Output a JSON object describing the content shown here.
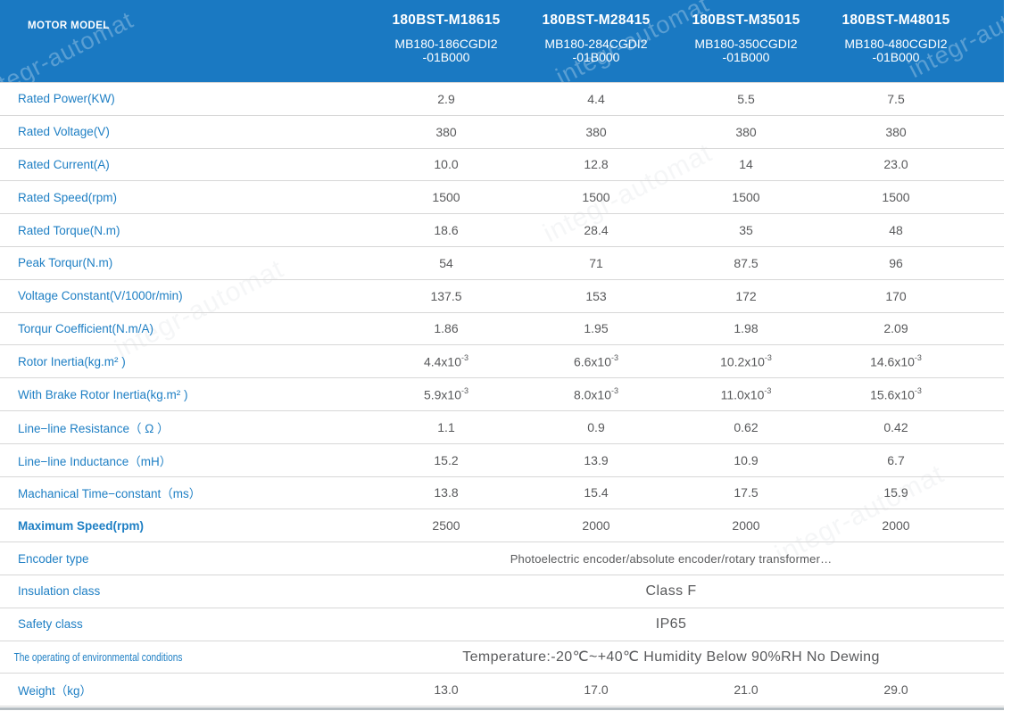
{
  "header": {
    "row_label": "MOTOR MODEL",
    "models": [
      {
        "name": "180BST-M18615",
        "code_line1": "MB180-186CGDI2",
        "code_line2": "-01B000"
      },
      {
        "name": "180BST-M28415",
        "code_line1": "MB180-284CGDI2",
        "code_line2": "-01B000"
      },
      {
        "name": "180BST-M35015",
        "code_line1": "MB180-350CGDI2",
        "code_line2": "-01B000"
      },
      {
        "name": "180BST-M48015",
        "code_line1": "MB180-480CGDI2",
        "code_line2": "-01B000"
      }
    ]
  },
  "watermark": {
    "text": "integr-automat"
  },
  "colors": {
    "header_bg": "#1a79c2",
    "label_text": "#1e7fc4",
    "value_text": "#58595b",
    "divider": "#d7d7d7",
    "bottom_bar": "#b5bdc2"
  },
  "table": {
    "rows": [
      {
        "label": "Rated Power(KW)",
        "values": [
          "2.9",
          "4.4",
          "5.5",
          "7.5"
        ]
      },
      {
        "label": "Rated Voltage(V)",
        "values": [
          "380",
          "380",
          "380",
          "380"
        ]
      },
      {
        "label": "Rated Current(A)",
        "values": [
          "10.0",
          "12.8",
          "14",
          "23.0"
        ]
      },
      {
        "label": "Rated Speed(rpm)",
        "values": [
          "1500",
          "1500",
          "1500",
          "1500"
        ]
      },
      {
        "label": "Rated Torque(N.m)",
        "values": [
          "18.6",
          "28.4",
          "35",
          "48"
        ]
      },
      {
        "label": "Peak Torqur(N.m)",
        "values": [
          "54",
          "71",
          "87.5",
          "96"
        ]
      },
      {
        "label": "Voltage Constant(V/1000r/min)",
        "values": [
          "137.5",
          "153",
          "172",
          "170"
        ]
      },
      {
        "label": "Torqur Coefficient(N.m/A)",
        "values": [
          "1.86",
          "1.95",
          "1.98",
          "2.09"
        ]
      },
      {
        "label": "Rotor Inertia(kg.m² )",
        "values": [
          "4.4x10^-3",
          "6.6x10^-3",
          "10.2x10^-3",
          "14.6x10^-3"
        ]
      },
      {
        "label": "With Brake Rotor Inertia(kg.m² )",
        "values": [
          "5.9x10^-3",
          "8.0x10^-3",
          "11.0x10^-3",
          "15.6x10^-3"
        ]
      },
      {
        "label": "Line−line Resistance（ Ω ）",
        "values": [
          "1.1",
          "0.9",
          "0.62",
          "0.42"
        ]
      },
      {
        "label": "Line−line Inductance（mH）",
        "values": [
          "15.2",
          "13.9",
          "10.9",
          "6.7"
        ]
      },
      {
        "label": "Machanical Time−constant（ms）",
        "values": [
          "13.8",
          "15.4",
          "17.5",
          "15.9"
        ]
      },
      {
        "label": "Maximum Speed(rpm)",
        "bold": true,
        "values": [
          "2500",
          "2000",
          "2000",
          "2000"
        ]
      },
      {
        "label": "Encoder type",
        "merged": "Photoelectric encoder/absolute encoder/rotary transformer…",
        "merged_size": "small"
      },
      {
        "label": "Insulation class",
        "merged": "Class F",
        "merged_size": "large"
      },
      {
        "label": "Safety class",
        "merged": "IP65",
        "merged_size": "large"
      },
      {
        "label": "The operating of environmental conditions",
        "condensed": true,
        "merged": "Temperature:-20℃~+40℃  Humidity Below 90%RH No Dewing",
        "merged_size": "large"
      },
      {
        "label": "Weight（kg）",
        "values": [
          "13.0",
          "17.0",
          "21.0",
          "29.0"
        ]
      }
    ]
  }
}
